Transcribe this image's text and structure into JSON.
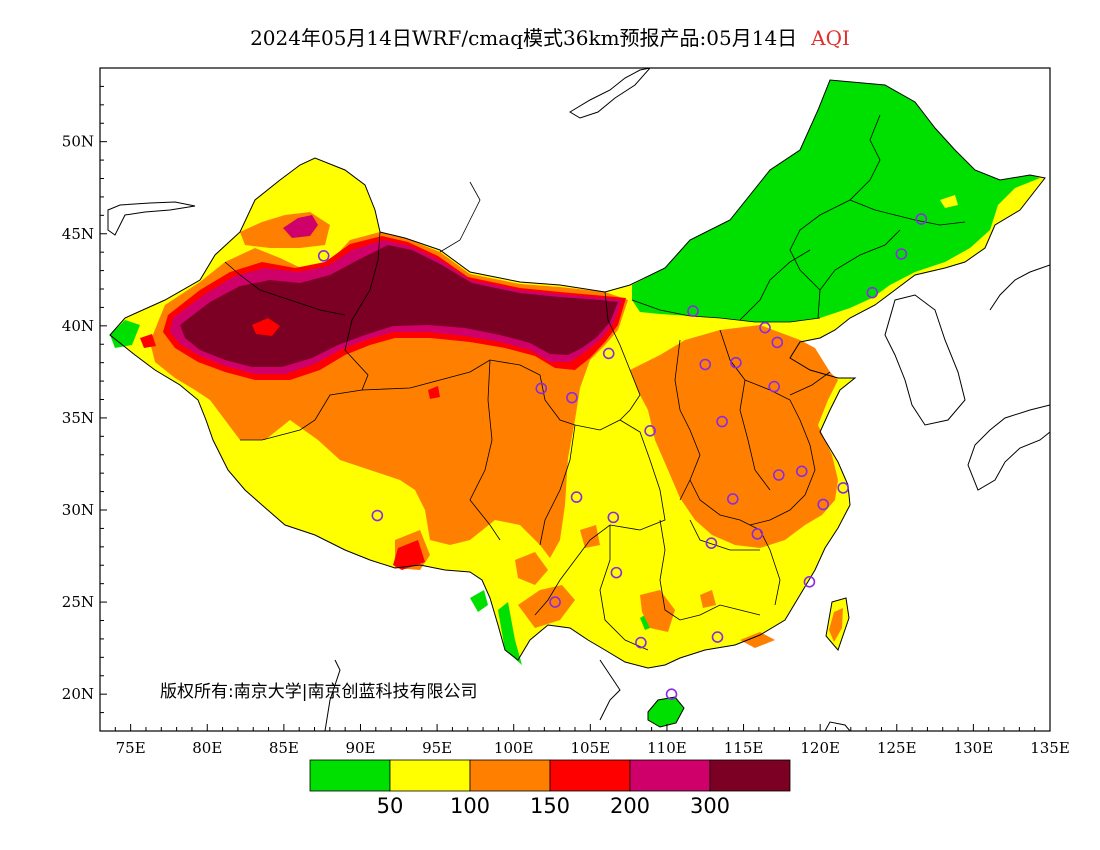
{
  "header": {
    "title": "2024年05月14日WRF/cmaq模式36km预报产品:05月14日",
    "variable": "AQI"
  },
  "map": {
    "lon_range": [
      73,
      135
    ],
    "lat_range": [
      18,
      54
    ],
    "x_ticks": [
      "75E",
      "80E",
      "85E",
      "90E",
      "95E",
      "100E",
      "105E",
      "110E",
      "115E",
      "120E",
      "125E",
      "130E",
      "135E"
    ],
    "y_ticks": [
      "20N",
      "25N",
      "30N",
      "35N",
      "40N",
      "45N",
      "50N"
    ],
    "copyright": "版权所有:南京大学|南京创蓝科技有限公司"
  },
  "legend": {
    "colors": [
      "#00e000",
      "#ffff00",
      "#ff8000",
      "#ff0000",
      "#d0006a",
      "#7b0023"
    ],
    "labels": [
      "50",
      "100",
      "150",
      "200",
      "300"
    ]
  },
  "stations": [
    [
      87.6,
      43.8
    ],
    [
      91.1,
      29.7
    ],
    [
      101.8,
      36.6
    ],
    [
      103.8,
      36.1
    ],
    [
      106.2,
      38.5
    ],
    [
      111.7,
      40.8
    ],
    [
      112.5,
      37.9
    ],
    [
      114.5,
      38.0
    ],
    [
      116.4,
      39.9
    ],
    [
      117.2,
      39.1
    ],
    [
      117.0,
      36.7
    ],
    [
      113.6,
      34.8
    ],
    [
      108.9,
      34.3
    ],
    [
      104.1,
      30.7
    ],
    [
      106.5,
      29.6
    ],
    [
      106.7,
      26.6
    ],
    [
      102.7,
      25.0
    ],
    [
      108.3,
      22.8
    ],
    [
      113.3,
      23.1
    ],
    [
      110.3,
      20.0
    ],
    [
      112.9,
      28.2
    ],
    [
      114.3,
      30.6
    ],
    [
      115.9,
      28.7
    ],
    [
      117.3,
      31.9
    ],
    [
      118.8,
      32.1
    ],
    [
      121.5,
      31.2
    ],
    [
      120.2,
      30.3
    ],
    [
      119.3,
      26.1
    ],
    [
      123.4,
      41.8
    ],
    [
      125.3,
      43.9
    ],
    [
      126.6,
      45.8
    ]
  ]
}
